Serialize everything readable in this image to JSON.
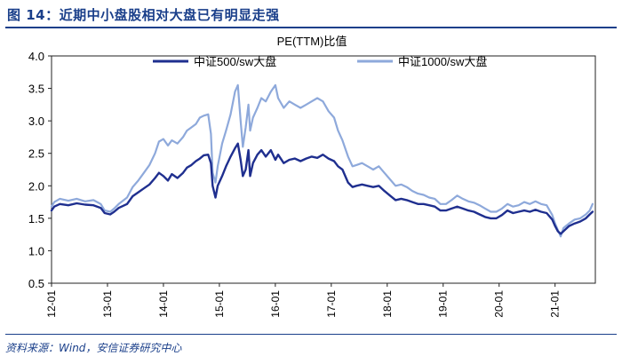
{
  "figure": {
    "title": "图 14：近期中小盘股相对大盘已有明显走强",
    "source": "资料来源：Wind，安信证券研究中心"
  },
  "chart_data": {
    "type": "line",
    "title": "PE(TTM)比值",
    "xlabel": "",
    "ylabel": "",
    "ylim": [
      0.5,
      4.0
    ],
    "yticks": [
      "0.5",
      "1.0",
      "1.5",
      "2.0",
      "2.5",
      "3.0",
      "3.5",
      "4.0"
    ],
    "xlim": [
      2012.0,
      2021.72
    ],
    "xticks": [
      "12-01",
      "13-01",
      "14-01",
      "15-01",
      "16-01",
      "17-01",
      "18-01",
      "19-01",
      "20-01",
      "21-01"
    ],
    "legend": "top",
    "series": [
      {
        "name": "中证500/sw大盘",
        "color": "#1f2f8f",
        "points": [
          [
            2012.0,
            1.62
          ],
          [
            2012.05,
            1.68
          ],
          [
            2012.15,
            1.72
          ],
          [
            2012.3,
            1.7
          ],
          [
            2012.45,
            1.73
          ],
          [
            2012.6,
            1.71
          ],
          [
            2012.75,
            1.7
          ],
          [
            2012.88,
            1.66
          ],
          [
            2012.95,
            1.58
          ],
          [
            2013.05,
            1.56
          ],
          [
            2013.12,
            1.6
          ],
          [
            2013.2,
            1.66
          ],
          [
            2013.35,
            1.72
          ],
          [
            2013.45,
            1.84
          ],
          [
            2013.55,
            1.9
          ],
          [
            2013.65,
            1.96
          ],
          [
            2013.75,
            2.02
          ],
          [
            2013.85,
            2.12
          ],
          [
            2013.92,
            2.2
          ],
          [
            2014.0,
            2.15
          ],
          [
            2014.08,
            2.08
          ],
          [
            2014.15,
            2.18
          ],
          [
            2014.25,
            2.12
          ],
          [
            2014.35,
            2.2
          ],
          [
            2014.42,
            2.28
          ],
          [
            2014.5,
            2.32
          ],
          [
            2014.58,
            2.38
          ],
          [
            2014.65,
            2.42
          ],
          [
            2014.72,
            2.47
          ],
          [
            2014.8,
            2.48
          ],
          [
            2014.85,
            2.35
          ],
          [
            2014.88,
            2.0
          ],
          [
            2014.93,
            1.82
          ],
          [
            2014.97,
            2.0
          ],
          [
            2015.05,
            2.15
          ],
          [
            2015.12,
            2.3
          ],
          [
            2015.2,
            2.45
          ],
          [
            2015.28,
            2.58
          ],
          [
            2015.33,
            2.65
          ],
          [
            2015.38,
            2.4
          ],
          [
            2015.42,
            2.15
          ],
          [
            2015.47,
            2.25
          ],
          [
            2015.52,
            2.55
          ],
          [
            2015.55,
            2.15
          ],
          [
            2015.6,
            2.35
          ],
          [
            2015.68,
            2.48
          ],
          [
            2015.75,
            2.55
          ],
          [
            2015.83,
            2.45
          ],
          [
            2015.92,
            2.55
          ],
          [
            2016.0,
            2.4
          ],
          [
            2016.05,
            2.48
          ],
          [
            2016.15,
            2.35
          ],
          [
            2016.25,
            2.4
          ],
          [
            2016.35,
            2.42
          ],
          [
            2016.45,
            2.38
          ],
          [
            2016.55,
            2.42
          ],
          [
            2016.65,
            2.45
          ],
          [
            2016.75,
            2.43
          ],
          [
            2016.85,
            2.48
          ],
          [
            2016.95,
            2.42
          ],
          [
            2017.05,
            2.38
          ],
          [
            2017.12,
            2.3
          ],
          [
            2017.2,
            2.25
          ],
          [
            2017.3,
            2.05
          ],
          [
            2017.38,
            1.98
          ],
          [
            2017.45,
            2.0
          ],
          [
            2017.55,
            2.02
          ],
          [
            2017.65,
            2.0
          ],
          [
            2017.75,
            1.98
          ],
          [
            2017.85,
            2.0
          ],
          [
            2017.95,
            1.92
          ],
          [
            2018.05,
            1.85
          ],
          [
            2018.15,
            1.78
          ],
          [
            2018.25,
            1.8
          ],
          [
            2018.35,
            1.78
          ],
          [
            2018.45,
            1.75
          ],
          [
            2018.55,
            1.72
          ],
          [
            2018.65,
            1.72
          ],
          [
            2018.75,
            1.7
          ],
          [
            2018.85,
            1.68
          ],
          [
            2018.95,
            1.62
          ],
          [
            2019.05,
            1.62
          ],
          [
            2019.15,
            1.65
          ],
          [
            2019.25,
            1.68
          ],
          [
            2019.35,
            1.65
          ],
          [
            2019.45,
            1.62
          ],
          [
            2019.55,
            1.6
          ],
          [
            2019.65,
            1.56
          ],
          [
            2019.75,
            1.52
          ],
          [
            2019.85,
            1.5
          ],
          [
            2019.95,
            1.5
          ],
          [
            2020.05,
            1.55
          ],
          [
            2020.15,
            1.62
          ],
          [
            2020.25,
            1.58
          ],
          [
            2020.35,
            1.6
          ],
          [
            2020.45,
            1.62
          ],
          [
            2020.55,
            1.6
          ],
          [
            2020.65,
            1.63
          ],
          [
            2020.75,
            1.6
          ],
          [
            2020.85,
            1.58
          ],
          [
            2020.95,
            1.48
          ],
          [
            2021.0,
            1.38
          ],
          [
            2021.05,
            1.3
          ],
          [
            2021.1,
            1.26
          ],
          [
            2021.15,
            1.3
          ],
          [
            2021.25,
            1.38
          ],
          [
            2021.35,
            1.42
          ],
          [
            2021.45,
            1.45
          ],
          [
            2021.55,
            1.5
          ],
          [
            2021.62,
            1.56
          ],
          [
            2021.67,
            1.6
          ]
        ]
      },
      {
        "name": "中证1000/sw大盘",
        "color": "#8ea9db",
        "points": [
          [
            2012.0,
            1.68
          ],
          [
            2012.05,
            1.75
          ],
          [
            2012.15,
            1.8
          ],
          [
            2012.3,
            1.77
          ],
          [
            2012.45,
            1.8
          ],
          [
            2012.6,
            1.76
          ],
          [
            2012.75,
            1.78
          ],
          [
            2012.88,
            1.72
          ],
          [
            2012.95,
            1.62
          ],
          [
            2013.05,
            1.6
          ],
          [
            2013.12,
            1.65
          ],
          [
            2013.2,
            1.72
          ],
          [
            2013.35,
            1.82
          ],
          [
            2013.45,
            1.98
          ],
          [
            2013.55,
            2.08
          ],
          [
            2013.65,
            2.2
          ],
          [
            2013.75,
            2.32
          ],
          [
            2013.85,
            2.5
          ],
          [
            2013.92,
            2.68
          ],
          [
            2014.0,
            2.72
          ],
          [
            2014.08,
            2.62
          ],
          [
            2014.15,
            2.7
          ],
          [
            2014.25,
            2.65
          ],
          [
            2014.35,
            2.75
          ],
          [
            2014.42,
            2.85
          ],
          [
            2014.5,
            2.9
          ],
          [
            2014.58,
            2.95
          ],
          [
            2014.65,
            3.05
          ],
          [
            2014.72,
            3.08
          ],
          [
            2014.8,
            3.1
          ],
          [
            2014.85,
            2.8
          ],
          [
            2014.88,
            2.2
          ],
          [
            2014.93,
            2.05
          ],
          [
            2014.97,
            2.3
          ],
          [
            2015.05,
            2.65
          ],
          [
            2015.12,
            2.85
          ],
          [
            2015.2,
            3.1
          ],
          [
            2015.28,
            3.45
          ],
          [
            2015.33,
            3.55
          ],
          [
            2015.38,
            3.0
          ],
          [
            2015.42,
            2.6
          ],
          [
            2015.47,
            2.9
          ],
          [
            2015.52,
            3.25
          ],
          [
            2015.55,
            2.85
          ],
          [
            2015.6,
            3.05
          ],
          [
            2015.68,
            3.2
          ],
          [
            2015.75,
            3.35
          ],
          [
            2015.83,
            3.3
          ],
          [
            2015.92,
            3.45
          ],
          [
            2016.0,
            3.55
          ],
          [
            2016.05,
            3.35
          ],
          [
            2016.15,
            3.2
          ],
          [
            2016.25,
            3.3
          ],
          [
            2016.35,
            3.25
          ],
          [
            2016.45,
            3.2
          ],
          [
            2016.55,
            3.25
          ],
          [
            2016.65,
            3.3
          ],
          [
            2016.75,
            3.35
          ],
          [
            2016.85,
            3.3
          ],
          [
            2016.95,
            3.15
          ],
          [
            2017.05,
            3.05
          ],
          [
            2017.12,
            2.85
          ],
          [
            2017.2,
            2.7
          ],
          [
            2017.3,
            2.45
          ],
          [
            2017.38,
            2.3
          ],
          [
            2017.45,
            2.32
          ],
          [
            2017.55,
            2.35
          ],
          [
            2017.65,
            2.3
          ],
          [
            2017.75,
            2.25
          ],
          [
            2017.85,
            2.3
          ],
          [
            2017.95,
            2.2
          ],
          [
            2018.05,
            2.1
          ],
          [
            2018.15,
            2.0
          ],
          [
            2018.25,
            2.02
          ],
          [
            2018.35,
            1.98
          ],
          [
            2018.45,
            1.92
          ],
          [
            2018.55,
            1.88
          ],
          [
            2018.65,
            1.86
          ],
          [
            2018.75,
            1.82
          ],
          [
            2018.85,
            1.8
          ],
          [
            2018.95,
            1.72
          ],
          [
            2019.05,
            1.72
          ],
          [
            2019.15,
            1.78
          ],
          [
            2019.25,
            1.85
          ],
          [
            2019.35,
            1.8
          ],
          [
            2019.45,
            1.76
          ],
          [
            2019.55,
            1.74
          ],
          [
            2019.65,
            1.7
          ],
          [
            2019.75,
            1.65
          ],
          [
            2019.85,
            1.6
          ],
          [
            2019.95,
            1.6
          ],
          [
            2020.05,
            1.65
          ],
          [
            2020.15,
            1.72
          ],
          [
            2020.25,
            1.68
          ],
          [
            2020.35,
            1.7
          ],
          [
            2020.45,
            1.75
          ],
          [
            2020.55,
            1.72
          ],
          [
            2020.65,
            1.76
          ],
          [
            2020.75,
            1.72
          ],
          [
            2020.85,
            1.7
          ],
          [
            2020.95,
            1.55
          ],
          [
            2021.0,
            1.42
          ],
          [
            2021.05,
            1.32
          ],
          [
            2021.1,
            1.22
          ],
          [
            2021.15,
            1.35
          ],
          [
            2021.25,
            1.42
          ],
          [
            2021.35,
            1.48
          ],
          [
            2021.45,
            1.5
          ],
          [
            2021.55,
            1.56
          ],
          [
            2021.62,
            1.62
          ],
          [
            2021.67,
            1.72
          ]
        ]
      }
    ]
  }
}
